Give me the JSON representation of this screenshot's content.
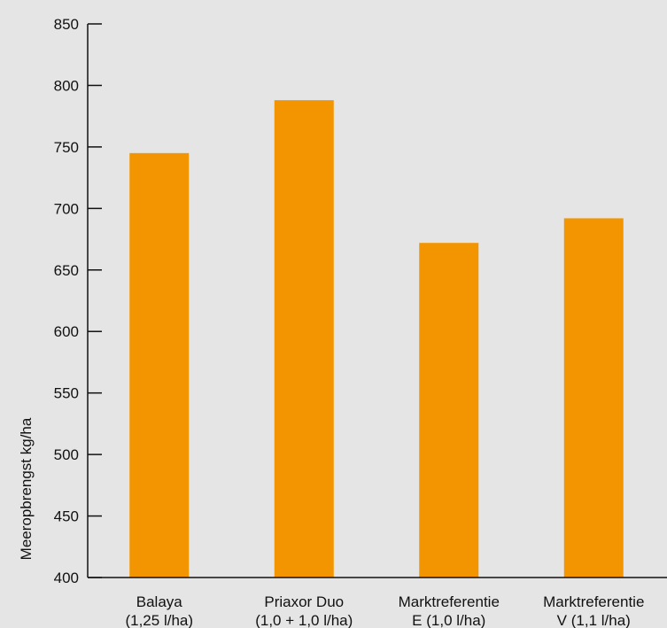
{
  "chart_data": {
    "type": "bar",
    "categories": [
      [
        "Balaya",
        "(1,25 l/ha)"
      ],
      [
        "Priaxor Duo",
        "(1,0 + 1,0 l/ha)"
      ],
      [
        "Marktreferentie",
        "E (1,0 l/ha)"
      ],
      [
        "Marktreferentie",
        "V (1,1 l/ha)"
      ]
    ],
    "values": [
      745,
      788,
      672,
      692
    ],
    "ylabel": "Meeropbrengst kg/ha",
    "xlabel": "",
    "ylim": [
      400,
      850
    ],
    "yticks": [
      400,
      450,
      500,
      550,
      600,
      650,
      700,
      750,
      800,
      850
    ],
    "grid": false,
    "bar_color": "#f39500",
    "axis_color": "#111111",
    "background": "#e5e5e5"
  }
}
